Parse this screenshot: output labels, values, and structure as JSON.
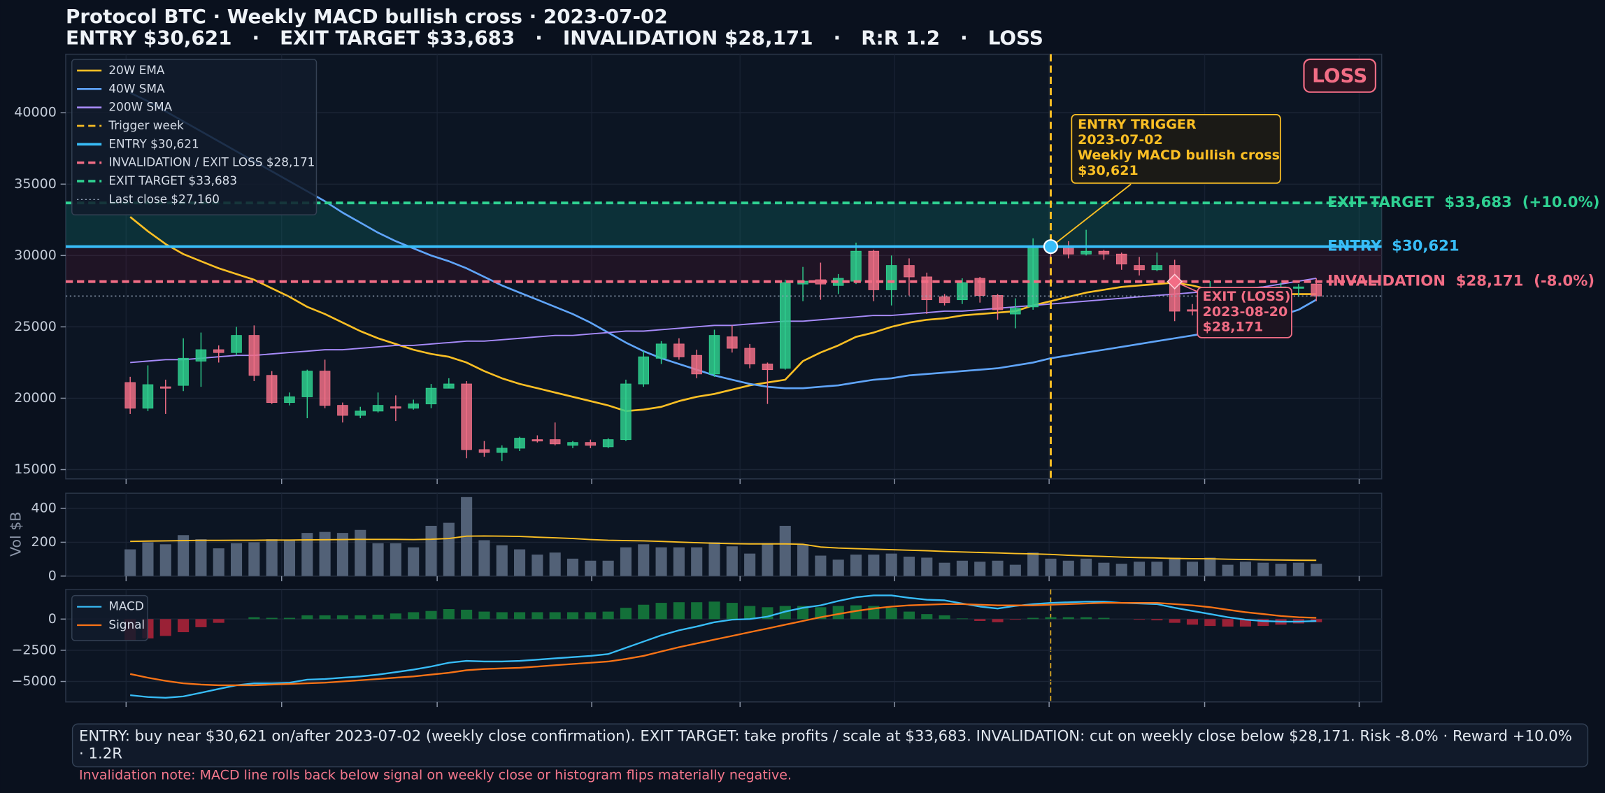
{
  "title": "Protocol BTC · Weekly MACD bullish cross · 2023-07-02",
  "subtitle": "ENTRY $30,621   ·   EXIT TARGET $33,683   ·   INVALIDATION $28,171   ·   R:R 1.2   ·   LOSS",
  "chart_data": [
    {
      "type": "candlestick",
      "open": [
        21100,
        19300,
        20800,
        20900,
        22600,
        23400,
        23200,
        24400,
        21600,
        19700,
        20100,
        21900,
        19500,
        18800,
        19100,
        19400,
        19300,
        19600,
        20700,
        21000,
        16400,
        16200,
        16500,
        17100,
        17100,
        16700,
        16900,
        16600,
        17100,
        21000,
        22800,
        23800,
        23000,
        21700,
        24300,
        23500,
        22400,
        22100,
        28000,
        28300,
        27900,
        28200,
        30300,
        27600,
        29300,
        28500,
        27100,
        26900,
        28400,
        27200,
        25900,
        26400,
        30600,
        30600,
        30100,
        30300,
        30100,
        29300,
        29000,
        29300,
        26200,
        26100,
        26200,
        26000,
        26300,
        26800,
        27700,
        28000
      ],
      "high": [
        21500,
        22300,
        21300,
        24200,
        24600,
        23700,
        25000,
        25100,
        21900,
        20400,
        22000,
        22700,
        19700,
        19400,
        20400,
        20200,
        19900,
        21000,
        21400,
        21200,
        17000,
        16700,
        17300,
        17400,
        18300,
        17000,
        17100,
        17200,
        21300,
        23300,
        24000,
        24200,
        23400,
        24800,
        25100,
        23800,
        22500,
        28300,
        29200,
        29500,
        28700,
        30900,
        30400,
        30000,
        29800,
        28800,
        27300,
        28400,
        28500,
        27300,
        27000,
        31200,
        31300,
        31000,
        31800,
        30400,
        30200,
        29900,
        30200,
        29700,
        26600,
        28200,
        26400,
        26600,
        27000,
        28100,
        28000,
        28400
      ],
      "low": [
        18900,
        19100,
        18900,
        20500,
        20800,
        22500,
        23000,
        21200,
        19600,
        19500,
        18600,
        19300,
        18300,
        18600,
        19000,
        18400,
        19200,
        19300,
        20700,
        15800,
        15900,
        15600,
        16300,
        16900,
        16700,
        16500,
        16500,
        16500,
        17000,
        20800,
        22400,
        22700,
        21400,
        21500,
        23200,
        22100,
        19600,
        22000,
        26800,
        26900,
        27300,
        28000,
        26800,
        26500,
        27200,
        25900,
        26500,
        26600,
        26700,
        25500,
        24900,
        26200,
        29900,
        29800,
        30000,
        29700,
        29000,
        28600,
        28900,
        25400,
        25800,
        25900,
        25800,
        25900,
        26100,
        26600,
        27100,
        26800
      ],
      "close": [
        19300,
        20950,
        20700,
        22800,
        23400,
        23200,
        24400,
        21600,
        19700,
        20100,
        21900,
        19500,
        18800,
        19100,
        19500,
        19300,
        19600,
        20700,
        21000,
        16400,
        16200,
        16500,
        17200,
        17000,
        16800,
        16900,
        16700,
        17100,
        21000,
        22900,
        23800,
        22900,
        21700,
        24400,
        23500,
        22400,
        22000,
        28100,
        28200,
        28000,
        28400,
        30300,
        27600,
        29300,
        28500,
        26900,
        26700,
        28100,
        27200,
        26200,
        26300,
        30600,
        30400,
        30100,
        30300,
        30100,
        29400,
        29000,
        29300,
        26100,
        26100,
        26200,
        26000,
        26300,
        26800,
        27800,
        27800,
        27160
      ],
      "up_color": "#2fcf8e",
      "down_color": "#f06e86",
      "ylim": [
        14350,
        44100
      ],
      "yticks": [
        15000,
        20000,
        25000,
        30000,
        35000,
        40000
      ],
      "grid": true,
      "legend": "upper left",
      "lines": [
        {
          "name": "20W EMA",
          "color": "#fbbf24",
          "values": [
            32700,
            31700,
            30800,
            30100,
            29600,
            29100,
            28700,
            28300,
            27700,
            27100,
            26400,
            25900,
            25300,
            24700,
            24200,
            23800,
            23400,
            23100,
            22900,
            22500,
            21900,
            21400,
            21000,
            20700,
            20400,
            20100,
            19800,
            19500,
            19100,
            19200,
            19400,
            19800,
            20100,
            20300,
            20600,
            20900,
            21100,
            21300,
            22600,
            23200,
            23700,
            24300,
            24600,
            25000,
            25300,
            25500,
            25600,
            25800,
            25900,
            26000,
            26100,
            26500,
            26800,
            27100,
            27400,
            27600,
            27800,
            27900,
            28000,
            28100,
            27900,
            27600,
            27400,
            27300,
            27300,
            27300,
            27300,
            27300
          ]
        },
        {
          "name": "40W SMA",
          "color": "#60a5fa",
          "values": [
            41400,
            40800,
            40100,
            39400,
            38700,
            38000,
            37300,
            36600,
            35900,
            35200,
            34500,
            33800,
            33000,
            32300,
            31600,
            31000,
            30500,
            30000,
            29600,
            29100,
            28500,
            27900,
            27400,
            26900,
            26400,
            25900,
            25300,
            24600,
            23900,
            23300,
            22800,
            22400,
            22000,
            21600,
            21300,
            21000,
            20800,
            20700,
            20700,
            20800,
            20900,
            21100,
            21300,
            21400,
            21600,
            21700,
            21800,
            21900,
            22000,
            22100,
            22300,
            22500,
            22800,
            23000,
            23200,
            23400,
            23600,
            23800,
            24000,
            24200,
            24400,
            24600,
            24800,
            25100,
            25400,
            25800,
            26200,
            26900
          ]
        },
        {
          "name": "200W SMA",
          "color": "#a78bfa",
          "values": [
            22500,
            22600,
            22700,
            22700,
            22800,
            22900,
            23000,
            23000,
            23100,
            23200,
            23300,
            23400,
            23400,
            23500,
            23600,
            23700,
            23700,
            23800,
            23900,
            24000,
            24000,
            24100,
            24200,
            24300,
            24400,
            24400,
            24500,
            24600,
            24700,
            24700,
            24800,
            24900,
            25000,
            25100,
            25100,
            25200,
            25300,
            25400,
            25400,
            25500,
            25600,
            25700,
            25800,
            25800,
            25900,
            26000,
            26100,
            26100,
            26200,
            26300,
            26400,
            26500,
            26600,
            26700,
            26800,
            26900,
            27000,
            27100,
            27200,
            27300,
            27400,
            27500,
            27600,
            27700,
            27800,
            28000,
            28200,
            28400
          ]
        }
      ],
      "trigger": {
        "name": "Trigger week",
        "color": "#fbbf24"
      },
      "levels": [
        {
          "name": "ENTRY $30,621",
          "label": "ENTRY  $30,621",
          "value": 30621,
          "color": "#38bdf8",
          "style": "solid"
        },
        {
          "name": "INVALIDATION / EXIT LOSS $28,171",
          "label": "INVALIDATION  $28,171  (-8.0%)",
          "value": 28171,
          "color": "#f26d85",
          "style": "dashed"
        },
        {
          "name": "EXIT TARGET $33,683",
          "label": "EXIT TARGET  $33,683  (+10.0%)",
          "value": 33683,
          "color": "#2fd192",
          "style": "dashed"
        },
        {
          "name": "Last close $27,160",
          "value": 27160,
          "color": "#94a3b8",
          "style": "dotted"
        }
      ],
      "annotations": [
        {
          "lines": [
            "ENTRY TRIGGER",
            "2023-07-02",
            "Weekly MACD bullish cross",
            "$30,621"
          ],
          "color": "#fbbf24"
        },
        {
          "lines": [
            "EXIT (LOSS)",
            "2023-08-20",
            "$28,171"
          ],
          "color": "#f26d85"
        }
      ],
      "badge": "LOSS"
    },
    {
      "type": "bar",
      "ylabel": "Vol $B",
      "color": "#5f6e86",
      "line_color": "#fbbf24",
      "values": [
        158,
        200,
        188,
        242,
        218,
        164,
        194,
        200,
        218,
        212,
        255,
        261,
        255,
        273,
        194,
        194,
        170,
        297,
        315,
        467,
        212,
        182,
        158,
        127,
        139,
        103,
        91,
        91,
        170,
        188,
        170,
        170,
        170,
        200,
        176,
        133,
        194,
        297,
        188,
        121,
        97,
        127,
        127,
        133,
        115,
        109,
        79,
        91,
        85,
        91,
        67,
        139,
        103,
        91,
        103,
        79,
        73,
        85,
        85,
        109,
        85,
        109,
        67,
        85,
        79,
        73,
        79,
        73
      ],
      "line_values": [
        205,
        207,
        208,
        210,
        211,
        211,
        212,
        212,
        213,
        213,
        214,
        215,
        216,
        217,
        217,
        217,
        216,
        218,
        222,
        236,
        237,
        236,
        235,
        230,
        226,
        222,
        216,
        212,
        210,
        208,
        205,
        201,
        197,
        194,
        192,
        190,
        190,
        190,
        188,
        172,
        166,
        162,
        159,
        156,
        153,
        150,
        146,
        143,
        140,
        137,
        133,
        131,
        128,
        123,
        119,
        116,
        112,
        109,
        107,
        104,
        103,
        102,
        100,
        98,
        96,
        95,
        94,
        93
      ],
      "ylim": [
        0,
        490
      ],
      "yticks": [
        0,
        200,
        400
      ],
      "grid": true
    },
    {
      "type": "macd",
      "series": [
        {
          "name": "MACD",
          "color": "#38bdf8",
          "values": [
            -6100,
            -6250,
            -6300,
            -6200,
            -5900,
            -5600,
            -5300,
            -5150,
            -5150,
            -5100,
            -4850,
            -4800,
            -4700,
            -4600,
            -4450,
            -4250,
            -4050,
            -3800,
            -3500,
            -3350,
            -3400,
            -3400,
            -3350,
            -3250,
            -3150,
            -3050,
            -2950,
            -2800,
            -2300,
            -1800,
            -1300,
            -900,
            -600,
            -250,
            -50,
            0,
            200,
            600,
            900,
            1100,
            1450,
            1750,
            1900,
            1900,
            1700,
            1550,
            1500,
            1250,
            1000,
            850,
            1050,
            1200,
            1300,
            1350,
            1400,
            1400,
            1300,
            1250,
            1200,
            900,
            650,
            400,
            150,
            -50,
            -150,
            -200,
            -200,
            -150
          ]
        },
        {
          "name": "Signal",
          "color": "#f97316",
          "values": [
            -4400,
            -4700,
            -4950,
            -5150,
            -5250,
            -5300,
            -5300,
            -5300,
            -5250,
            -5200,
            -5150,
            -5100,
            -5000,
            -4900,
            -4800,
            -4700,
            -4600,
            -4450,
            -4300,
            -4100,
            -4000,
            -3950,
            -3900,
            -3800,
            -3700,
            -3600,
            -3500,
            -3400,
            -3200,
            -2950,
            -2600,
            -2250,
            -1950,
            -1650,
            -1350,
            -1050,
            -750,
            -450,
            -150,
            150,
            400,
            650,
            850,
            1000,
            1100,
            1150,
            1200,
            1200,
            1150,
            1100,
            1100,
            1100,
            1150,
            1200,
            1250,
            1300,
            1300,
            1300,
            1300,
            1200,
            1100,
            950,
            750,
            550,
            400,
            250,
            150,
            100
          ]
        }
      ],
      "histogram": [
        -1700,
        -1550,
        -1350,
        -1050,
        -650,
        -300,
        0,
        150,
        100,
        100,
        300,
        300,
        300,
        300,
        350,
        450,
        550,
        650,
        800,
        750,
        600,
        550,
        550,
        550,
        550,
        550,
        550,
        600,
        900,
        1150,
        1300,
        1350,
        1350,
        1400,
        1300,
        1050,
        950,
        1050,
        1050,
        950,
        1050,
        1100,
        1050,
        900,
        600,
        400,
        300,
        50,
        -150,
        -250,
        -50,
        100,
        150,
        150,
        150,
        100,
        0,
        -50,
        -100,
        -300,
        -450,
        -550,
        -600,
        -600,
        -550,
        -450,
        -350,
        -250
      ],
      "up_color": "#15803d",
      "down_color": "#b4233a",
      "ylim": [
        -6640,
        2380
      ],
      "yticks": [
        {
          "value": -5000,
          "label": "−5000"
        },
        {
          "value": -2500,
          "label": "−2500"
        },
        0
      ],
      "grid": true,
      "legend": "upper left"
    }
  ],
  "footer": {
    "text": "ENTRY: buy near $30,621 on/after 2023-07-02 (weekly close confirmation).   EXIT TARGET: take profits / scale at $33,683.   INVALIDATION: cut on weekly close below $28,171.   Risk -8.0% · Reward +10.0% · 1.2R",
    "note": "Invalidation note: MACD line rolls back below signal on weekly close or histogram flips materially negative."
  }
}
